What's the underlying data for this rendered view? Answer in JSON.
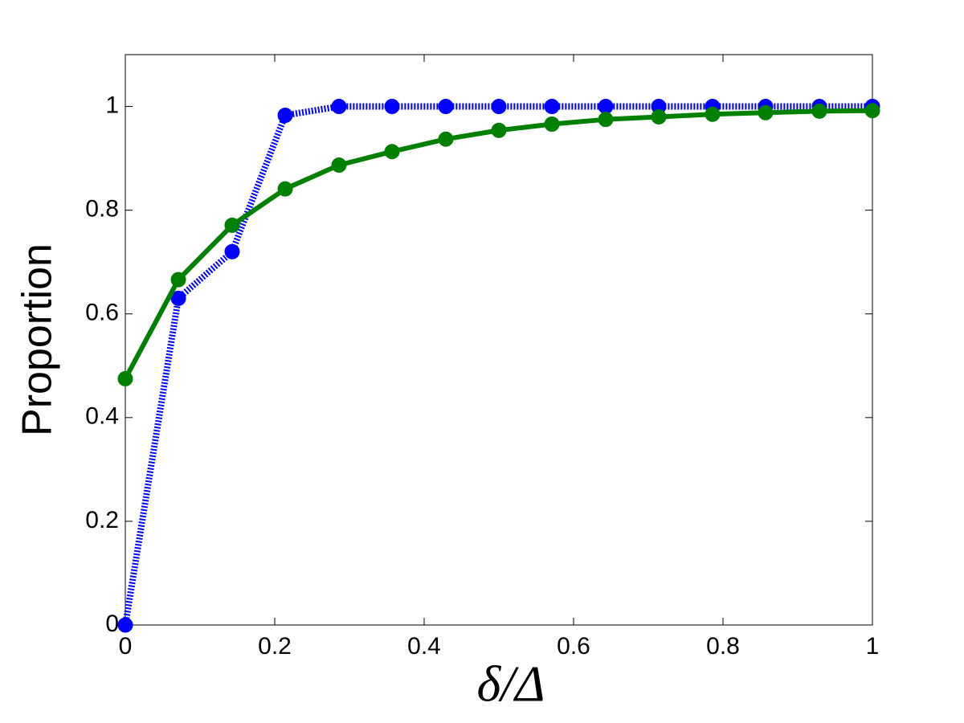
{
  "chart_data": {
    "type": "line",
    "x_label": "δ/Δ",
    "y_label": "Proportion",
    "x": [
      0,
      0.071,
      0.143,
      0.214,
      0.286,
      0.357,
      0.429,
      0.5,
      0.571,
      0.643,
      0.714,
      0.786,
      0.857,
      0.929,
      1
    ],
    "series": [
      {
        "color": "#0000ff",
        "dash": "dotted",
        "values": [
          0,
          0.63,
          0.72,
          0.983,
          1,
          1,
          1,
          1,
          1,
          1,
          1,
          1,
          1,
          1,
          1
        ]
      },
      {
        "color": "#008000",
        "dash": "solid",
        "values": [
          0.475,
          0.666,
          0.771,
          0.841,
          0.887,
          0.913,
          0.937,
          0.954,
          0.966,
          0.975,
          0.98,
          0.985,
          0.988,
          0.991,
          0.992
        ]
      }
    ],
    "xlim": [
      0,
      1
    ],
    "ylim": [
      0,
      1.1
    ],
    "xticks": [
      0,
      0.2,
      0.4,
      0.6,
      0.8,
      1
    ],
    "yticks": [
      0,
      0.2,
      0.4,
      0.6,
      0.8,
      1
    ],
    "grid": false
  }
}
